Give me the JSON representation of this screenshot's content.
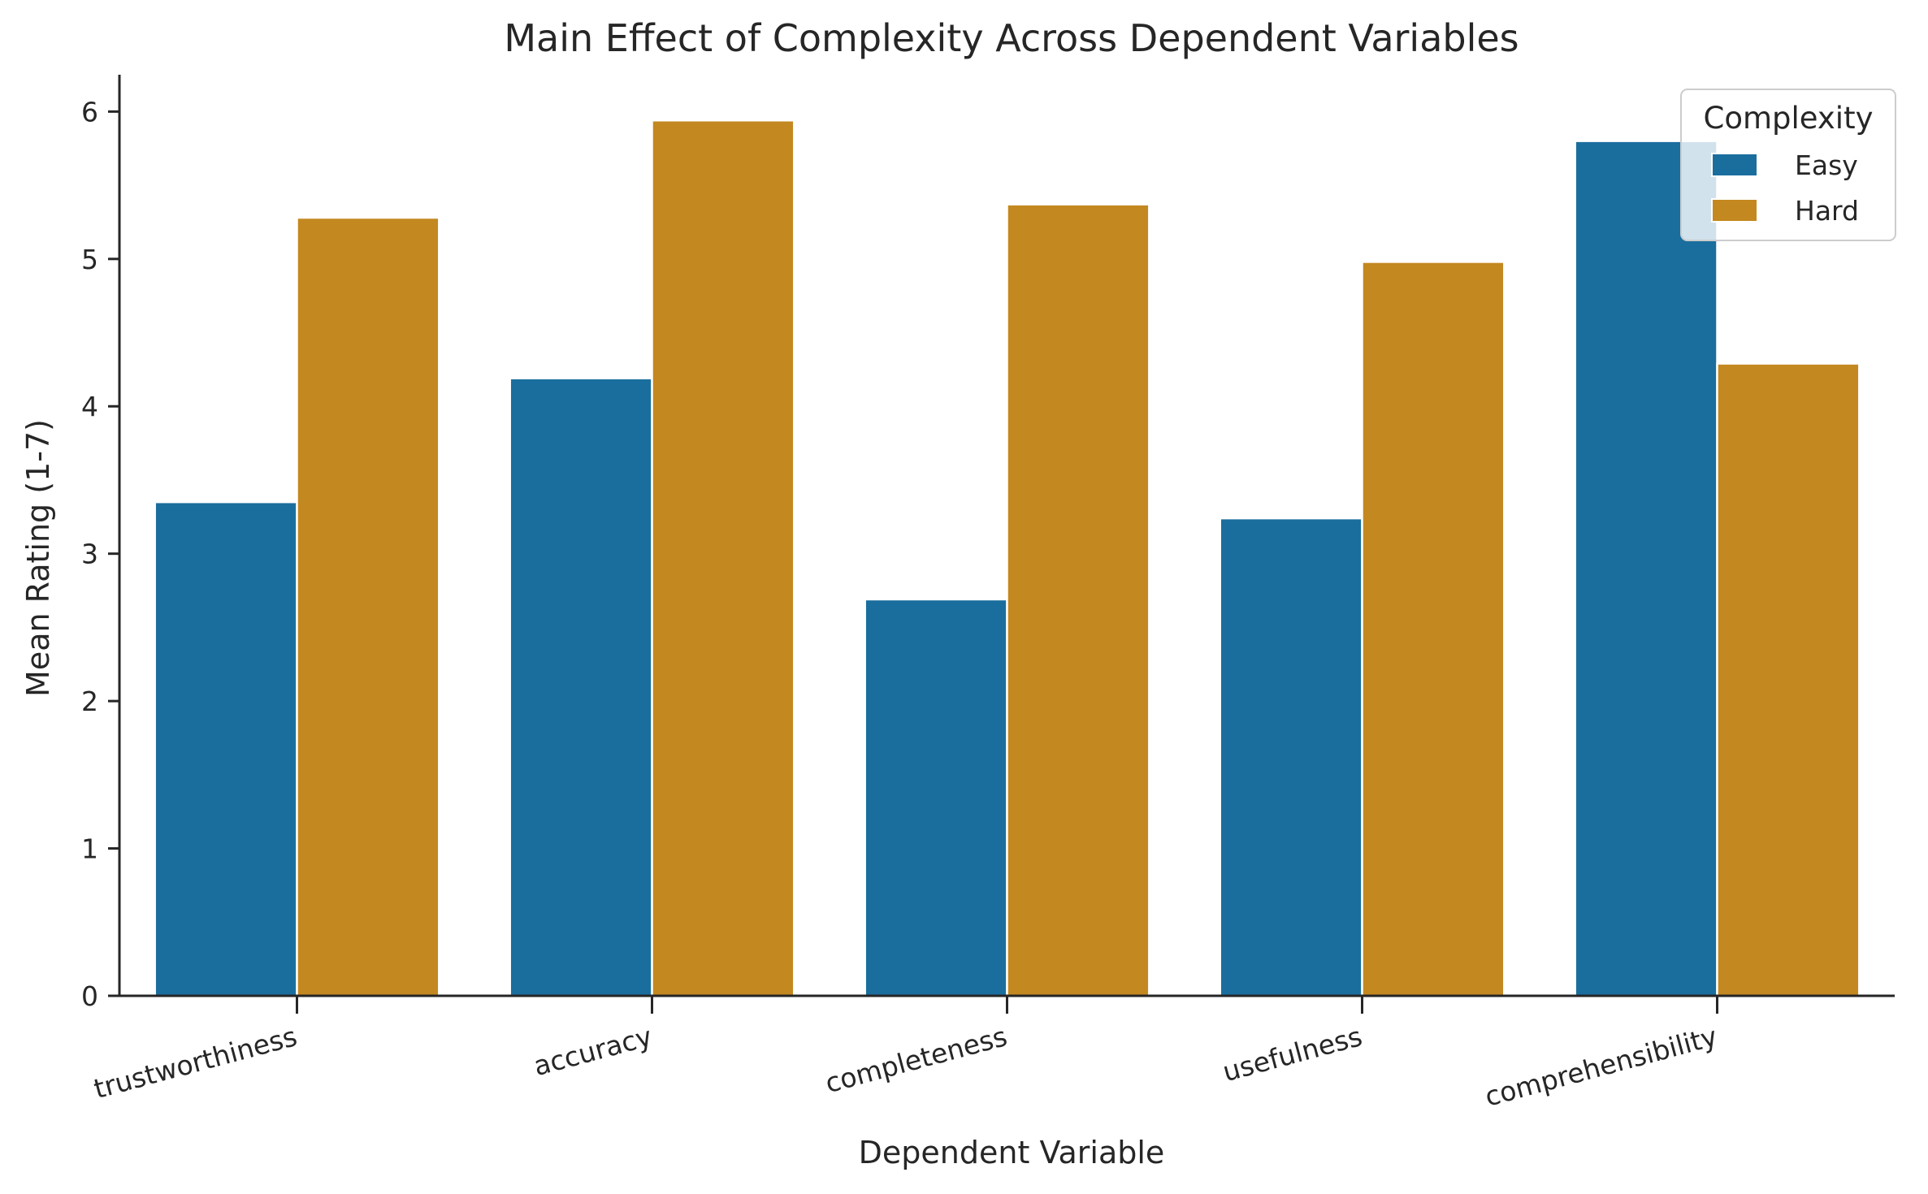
{
  "chart_data": {
    "type": "bar",
    "title": "Main Effect of Complexity Across Dependent Variables",
    "xlabel": "Dependent Variable",
    "ylabel": "Mean Rating (1-7)",
    "categories": [
      "trustworthiness",
      "accuracy",
      "completeness",
      "usefulness",
      "comprehensibility"
    ],
    "series": [
      {
        "name": "Easy",
        "color": "#1a6e9e",
        "values": [
          3.35,
          4.19,
          2.69,
          3.24,
          5.8
        ]
      },
      {
        "name": "Hard",
        "color": "#c48820",
        "values": [
          5.28,
          5.94,
          5.37,
          4.98,
          4.29
        ]
      }
    ],
    "ylim": [
      0,
      6.25
    ],
    "yticks": [
      0,
      1,
      2,
      3,
      4,
      5,
      6
    ],
    "grid": false,
    "legend": {
      "title": "Complexity",
      "placement": "top-right"
    }
  }
}
